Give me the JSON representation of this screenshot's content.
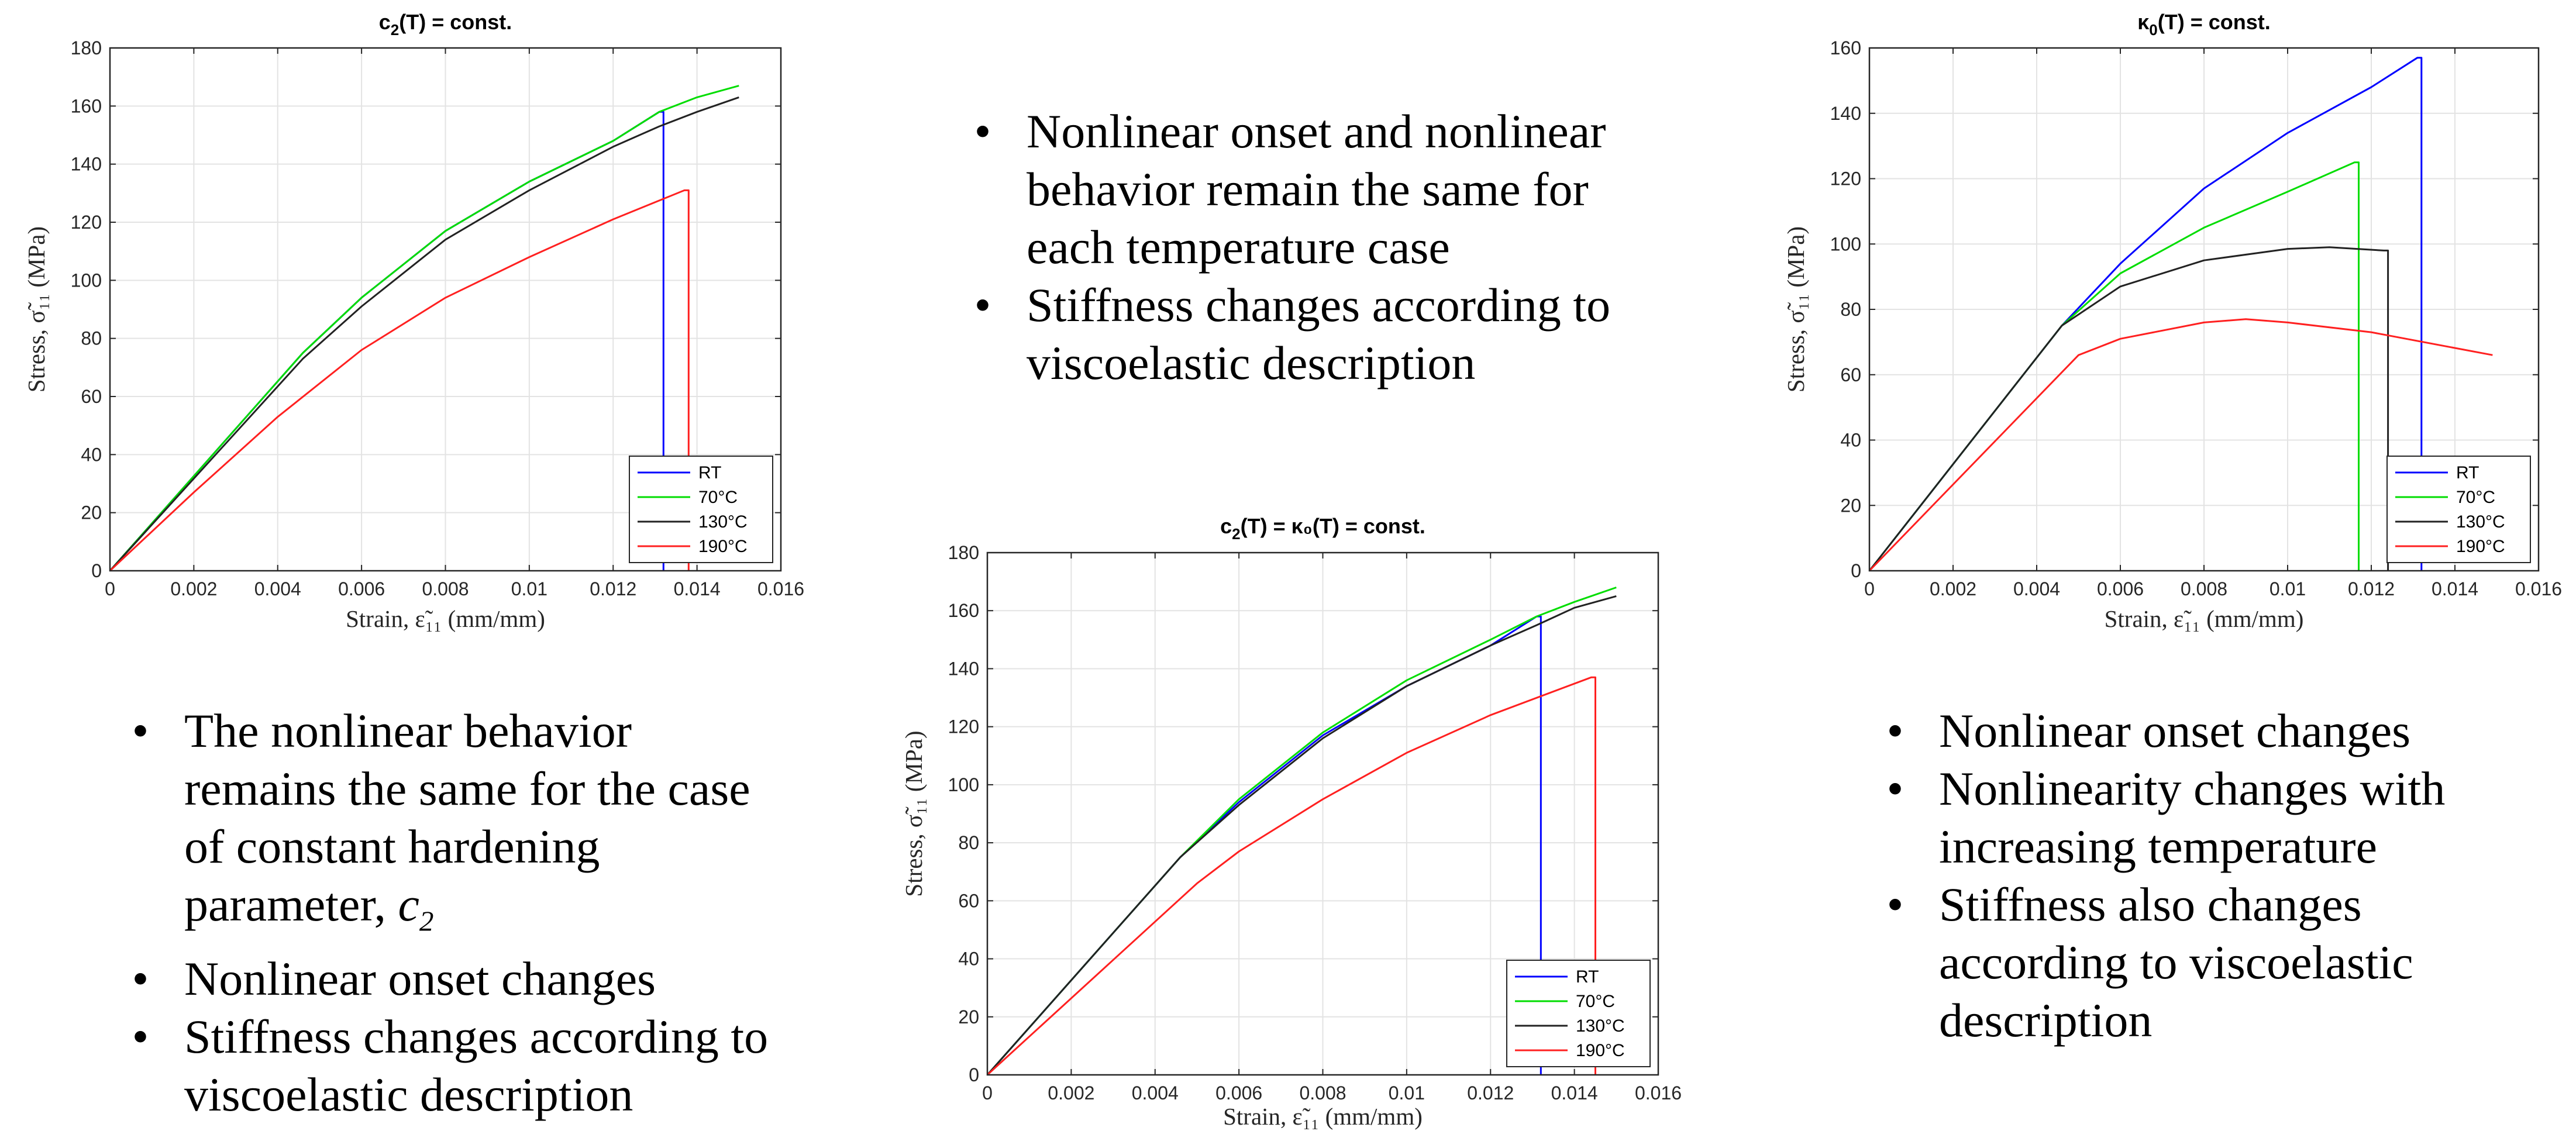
{
  "chart_data": [
    {
      "type": "line",
      "title_main": "c",
      "title_sub": "2",
      "title_rest": "(T) = const.",
      "xlabel": "Strain, ε̃₁₁ (mm/mm)",
      "ylabel": "Stress, σ̃₁₁ (MPa)",
      "xlim": [
        0,
        0.016
      ],
      "ylim": [
        0,
        180
      ],
      "xticks": [
        "0",
        "0.002",
        "0.004",
        "0.006",
        "0.008",
        "0.01",
        "0.012",
        "0.014",
        "0.016"
      ],
      "yticks": [
        "0",
        "20",
        "40",
        "60",
        "80",
        "100",
        "120",
        "140",
        "160",
        "180"
      ],
      "grid": true,
      "legend_position": "bottom-right",
      "series": [
        {
          "name": "RT",
          "color": "#0000ff",
          "x": [
            0,
            0.0046,
            0.006,
            0.008,
            0.01,
            0.012,
            0.0131,
            0.0132,
            0.0132
          ],
          "y": [
            0,
            75,
            94,
            117,
            134,
            148,
            158,
            158,
            0
          ]
        },
        {
          "name": "70°C",
          "color": "#00dd00",
          "x": [
            0,
            0.0046,
            0.006,
            0.008,
            0.01,
            0.012,
            0.0131,
            0.014,
            0.015
          ],
          "y": [
            0,
            75,
            94,
            117,
            134,
            148,
            158,
            163,
            167
          ]
        },
        {
          "name": "130°C",
          "color": "#222222",
          "x": [
            0,
            0.0046,
            0.006,
            0.008,
            0.01,
            0.012,
            0.0131,
            0.014,
            0.015
          ],
          "y": [
            0,
            73,
            91,
            114,
            131,
            146,
            153,
            158,
            163
          ]
        },
        {
          "name": "190°C",
          "color": "#ff2020",
          "x": [
            0,
            0.002,
            0.004,
            0.006,
            0.008,
            0.01,
            0.012,
            0.0137,
            0.0138,
            0.0138
          ],
          "y": [
            0,
            27,
            53,
            76,
            94,
            108,
            121,
            131,
            131,
            0
          ]
        }
      ]
    },
    {
      "type": "line",
      "title_main": "c",
      "title_sub": "2",
      "title_rest": "(T) = κ₀(T) =  const.",
      "xlabel": "Strain, ε̃₁₁ (mm/mm)",
      "ylabel": "Stress, σ̃₁₁ (MPa)",
      "xlim": [
        0,
        0.016
      ],
      "ylim": [
        0,
        180
      ],
      "xticks": [
        "0",
        "0.002",
        "0.004",
        "0.006",
        "0.008",
        "0.01",
        "0.012",
        "0.014",
        "0.016"
      ],
      "yticks": [
        "0",
        "20",
        "40",
        "60",
        "80",
        "100",
        "120",
        "140",
        "160",
        "180"
      ],
      "grid": true,
      "legend_position": "bottom-right",
      "series": [
        {
          "name": "RT",
          "color": "#0000ff",
          "x": [
            0,
            0.0046,
            0.006,
            0.008,
            0.01,
            0.012,
            0.0131,
            0.0132,
            0.0132
          ],
          "y": [
            0,
            75,
            94,
            117,
            134,
            148,
            158,
            158,
            0
          ]
        },
        {
          "name": "70°C",
          "color": "#00dd00",
          "x": [
            0,
            0.0046,
            0.006,
            0.008,
            0.01,
            0.012,
            0.0131,
            0.014,
            0.015
          ],
          "y": [
            0,
            75,
            95,
            118,
            136,
            150,
            158,
            163,
            168
          ]
        },
        {
          "name": "130°C",
          "color": "#222222",
          "x": [
            0,
            0.0046,
            0.006,
            0.008,
            0.01,
            0.012,
            0.0131,
            0.014,
            0.015
          ],
          "y": [
            0,
            75,
            93,
            116,
            134,
            148,
            155,
            161,
            165
          ]
        },
        {
          "name": "190°C",
          "color": "#ff2020",
          "x": [
            0,
            0.005,
            0.006,
            0.008,
            0.01,
            0.012,
            0.0144,
            0.0145,
            0.0145
          ],
          "y": [
            0,
            66,
            77,
            95,
            111,
            124,
            137,
            137,
            0
          ]
        }
      ]
    },
    {
      "type": "line",
      "title_main": "κ",
      "title_sub": "0",
      "title_rest": "(T) = const.",
      "xlabel": "Strain, ε̃₁₁ (mm/mm)",
      "ylabel": "Stress, σ̃₁₁ (MPa)",
      "xlim": [
        0,
        0.016
      ],
      "ylim": [
        0,
        160
      ],
      "xticks": [
        "0",
        "0.002",
        "0.004",
        "0.006",
        "0.008",
        "0.01",
        "0.012",
        "0.014",
        "0.016"
      ],
      "yticks": [
        "0",
        "20",
        "40",
        "60",
        "80",
        "100",
        "120",
        "140",
        "160"
      ],
      "grid": true,
      "legend_position": "bottom-right",
      "series": [
        {
          "name": "RT",
          "color": "#0000ff",
          "x": [
            0,
            0.0046,
            0.006,
            0.008,
            0.01,
            0.012,
            0.0131,
            0.0132,
            0.0132
          ],
          "y": [
            0,
            75,
            94,
            117,
            134,
            148,
            157,
            157,
            0
          ]
        },
        {
          "name": "70°C",
          "color": "#00dd00",
          "x": [
            0,
            0.0046,
            0.006,
            0.008,
            0.01,
            0.0116,
            0.0117,
            0.0117
          ],
          "y": [
            0,
            75,
            91,
            105,
            116,
            125,
            125,
            0
          ]
        },
        {
          "name": "130°C",
          "color": "#222222",
          "x": [
            0,
            0.0046,
            0.006,
            0.008,
            0.01,
            0.011,
            0.0123,
            0.0124,
            0.0124
          ],
          "y": [
            0,
            75,
            87,
            95,
            98.5,
            99,
            98,
            98,
            0
          ]
        },
        {
          "name": "190°C",
          "color": "#ff2020",
          "x": [
            0,
            0.005,
            0.006,
            0.008,
            0.009,
            0.01,
            0.012,
            0.0149
          ],
          "y": [
            0,
            66,
            71,
            76,
            77,
            76,
            73,
            66
          ]
        }
      ]
    }
  ],
  "text_blocks": {
    "top_center": [
      {
        "text": "Nonlinear onset and nonlinear behavior remain the same for each temperature case"
      },
      {
        "text": "Stiffness changes according to viscoelastic description"
      }
    ],
    "bottom_left": [
      {
        "text": "The nonlinear behavior remains the same for the case of constant hardening parameter, ",
        "math": "c",
        "math_sub": "2"
      },
      {
        "text": "Nonlinear onset changes"
      },
      {
        "text": "Stiffness changes according to viscoelastic description"
      }
    ],
    "bottom_right": [
      {
        "text": "Nonlinear onset changes"
      },
      {
        "text": "Nonlinearity changes with increasing temperature"
      },
      {
        "text": "Stiffness also changes according to viscoelastic description"
      }
    ]
  }
}
